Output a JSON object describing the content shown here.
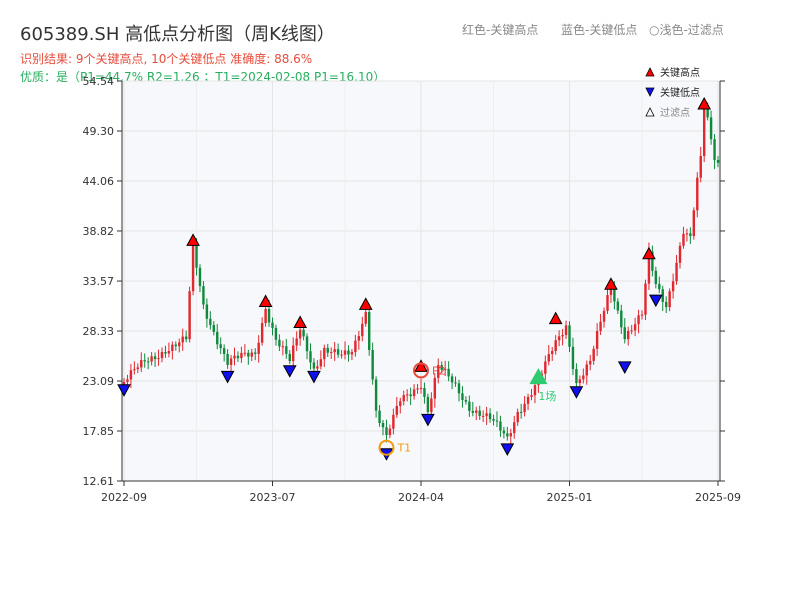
{
  "header": {
    "title": "605389.SH 高低点分析图（周K线图）",
    "result_line": "识别结果: 9个关键高点, 10个关键低点  准确度: 88.6%",
    "quality_line": "优质：是（P1=44.7%  R2=1.26 ；T1=2024-02-08 P1=16.10）",
    "top_legend": [
      "红色-关键高点",
      "蓝色-关键低点",
      "○浅色-过滤点"
    ]
  },
  "colors": {
    "up": "#e0282e",
    "down": "#0f8a3c",
    "high": "#ff0000",
    "low": "#1010ee",
    "grid": "#e5e5e5",
    "plot_bg": "#f7f8fb",
    "marker": "#f39c12",
    "accent_green": "#2ecc71"
  },
  "chart_data": {
    "type": "candlestick",
    "y_ticks": [
      "12.61",
      "17.85",
      "23.09",
      "28.33",
      "33.57",
      "38.82",
      "44.06",
      "49.30",
      "54.54"
    ],
    "ylim": [
      12.61,
      54.54
    ],
    "x_ticks": [
      {
        "label": "2022-09",
        "i": 0
      },
      {
        "label": "2023-07",
        "i": 43
      },
      {
        "label": "2024-04",
        "i": 86
      },
      {
        "label": "2025-01",
        "i": 129
      },
      {
        "label": "2025-09",
        "i": 172
      }
    ],
    "x_count": 173,
    "legend": [
      {
        "label": "关键高点",
        "shape": "up",
        "color": "#ff0000"
      },
      {
        "label": "关键低点",
        "shape": "down",
        "color": "#1010ee"
      },
      {
        "label": "过滤点",
        "shape": "up-hollow",
        "color": "#ffffff"
      }
    ],
    "anchors": [
      [
        0,
        23.0
      ],
      [
        6,
        25.0
      ],
      [
        12,
        26.5
      ],
      [
        18,
        27.3
      ],
      [
        20,
        37.0
      ],
      [
        23,
        31.0
      ],
      [
        30,
        25.0
      ],
      [
        38,
        26.0
      ],
      [
        41,
        31.0
      ],
      [
        44,
        27.5
      ],
      [
        48,
        25.0
      ],
      [
        51,
        28.5
      ],
      [
        55,
        24.5
      ],
      [
        58,
        26.5
      ],
      [
        63,
        25.5
      ],
      [
        66,
        26.0
      ],
      [
        70,
        30.5
      ],
      [
        73,
        20.0
      ],
      [
        76,
        17.0
      ],
      [
        80,
        21.0
      ],
      [
        86,
        23.0
      ],
      [
        88,
        20.0
      ],
      [
        91,
        24.5
      ],
      [
        96,
        22.5
      ],
      [
        100,
        20.5
      ],
      [
        106,
        19.0
      ],
      [
        111,
        17.0
      ],
      [
        114,
        20.0
      ],
      [
        120,
        23.0
      ],
      [
        125,
        27.0
      ],
      [
        128,
        29.0
      ],
      [
        131,
        23.0
      ],
      [
        135,
        25.0
      ],
      [
        141,
        33.0
      ],
      [
        145,
        28.0
      ],
      [
        150,
        30.0
      ],
      [
        152,
        36.0
      ],
      [
        154,
        33.0
      ],
      [
        157,
        31.0
      ],
      [
        162,
        39.0
      ],
      [
        164,
        38.0
      ],
      [
        165,
        41.0
      ],
      [
        167,
        45.5
      ],
      [
        168,
        51.5
      ],
      [
        170,
        48.0
      ],
      [
        172,
        46.0
      ]
    ],
    "highs": [
      {
        "i": 20,
        "v": 37.2
      },
      {
        "i": 41,
        "v": 30.8
      },
      {
        "i": 51,
        "v": 28.6
      },
      {
        "i": 70,
        "v": 30.5
      },
      {
        "i": 86,
        "v": 24.0
      },
      {
        "i": 125,
        "v": 29.0
      },
      {
        "i": 141,
        "v": 32.6
      },
      {
        "i": 152,
        "v": 35.8
      },
      {
        "i": 168,
        "v": 51.5
      }
    ],
    "lows": [
      {
        "i": 0,
        "v": 22.8
      },
      {
        "i": 30,
        "v": 24.2
      },
      {
        "i": 48,
        "v": 24.8
      },
      {
        "i": 55,
        "v": 24.2
      },
      {
        "i": 76,
        "v": 16.1
      },
      {
        "i": 88,
        "v": 19.7
      },
      {
        "i": 111,
        "v": 16.6
      },
      {
        "i": 131,
        "v": 22.6
      },
      {
        "i": 145,
        "v": 25.2
      },
      {
        "i": 154,
        "v": 32.2
      }
    ],
    "annotations": [
      {
        "label": "T1",
        "i": 76,
        "v": 16.1,
        "kind": "circle",
        "color": "#f39c12"
      },
      {
        "label": "P2",
        "i": 86,
        "v": 24.2,
        "kind": "circle",
        "color": "#e74c3c"
      },
      {
        "label": "1场",
        "i": 120,
        "v": 23.4,
        "kind": "tri",
        "color": "#2ecc71"
      }
    ]
  }
}
